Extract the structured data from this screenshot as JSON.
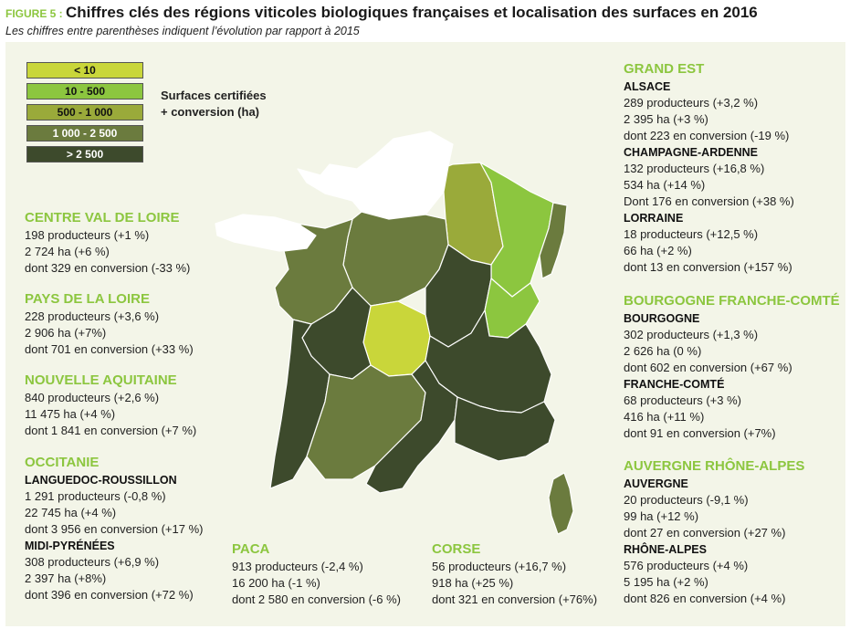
{
  "header": {
    "figure_label": "FIGURE 5 : ",
    "title": "Chiffres clés des régions viticoles biologiques françaises et localisation des surfaces en 2016",
    "subtitle": "Les chiffres entre parenthèses indiquent l’évolution par rapport à 2015"
  },
  "legend": {
    "title_line1": "Surfaces certifiées",
    "title_line2": "+ conversion (ha)",
    "items": [
      {
        "label": "< 10",
        "color": "#c9d63a",
        "text_color": "#111111"
      },
      {
        "label": "10 - 500",
        "color": "#8cc63f",
        "text_color": "#111111"
      },
      {
        "label": "500 - 1 000",
        "color": "#9aaa3a",
        "text_color": "#111111"
      },
      {
        "label": "1 000 - 2 500",
        "color": "#6b7b3e",
        "text_color": "#ffffff"
      },
      {
        "label": "> 2 500",
        "color": "#3d4a2c",
        "text_color": "#ffffff"
      }
    ]
  },
  "regions": {
    "centre": {
      "name": "CENTRE VAL DE LOIRE",
      "lines": [
        "198 producteurs (+1 %)",
        "2 724 ha (+6 %)",
        "dont 329 en conversion (-33 %)"
      ]
    },
    "pays_loire": {
      "name": "PAYS DE LA LOIRE",
      "lines": [
        "228 producteurs (+3,6 %)",
        "2 906 ha (+7%)",
        "dont 701 en conversion (+33 %)"
      ]
    },
    "nouvelle_aquitaine": {
      "name": "NOUVELLE AQUITAINE",
      "lines": [
        "840 producteurs (+2,6 %)",
        "11 475 ha (+4 %)",
        "dont 1 841 en conversion (+7 %)"
      ]
    },
    "occitanie": {
      "name": "OCCITANIE",
      "sub1": "LANGUEDOC-ROUSSILLON",
      "sub1_lines": [
        "1 291 producteurs (-0,8 %)",
        "22 745 ha (+4 %)",
        "dont 3 956 en conversion (+17 %)"
      ],
      "sub2": "MIDI-PYRÉNÉES",
      "sub2_lines": [
        "308 producteurs (+6,9 %)",
        "2 397 ha (+8%)",
        "dont 396 en conversion (+72 %)"
      ]
    },
    "paca": {
      "name": "PACA",
      "lines": [
        "913 producteurs (-2,4 %)",
        "16 200 ha (-1 %)",
        "dont 2 580 en conversion (-6 %)"
      ]
    },
    "corse": {
      "name": "CORSE",
      "lines": [
        "56 producteurs (+16,7 %)",
        "918 ha (+25 %)",
        "dont 321 en conversion (+76%)"
      ]
    },
    "grand_est": {
      "name": "GRAND EST",
      "sub1": "ALSACE",
      "sub1_lines": [
        "289 producteurs (+3,2 %)",
        "2 395 ha (+3 %)",
        "dont 223 en conversion (-19 %)"
      ],
      "sub2": "CHAMPAGNE-ARDENNE",
      "sub2_lines": [
        "132 producteurs (+16,8 %)",
        "534 ha (+14 %)",
        "Dont 176 en conversion (+38 %)"
      ],
      "sub3": "LORRAINE",
      "sub3_lines": [
        "18 producteurs (+12,5 %)",
        "66 ha (+2 %)",
        "dont 13 en conversion (+157 %)"
      ]
    },
    "bourgogne_fc": {
      "name": "BOURGOGNE FRANCHE-COMTÉ",
      "sub1": "BOURGOGNE",
      "sub1_lines": [
        "302 producteurs (+1,3 %)",
        "2 626 ha (0 %)",
        "dont 602 en conversion (+67 %)"
      ],
      "sub2": "FRANCHE-COMTÉ",
      "sub2_lines": [
        "68 producteurs (+3 %)",
        "416 ha (+11 %)",
        "dont 91 en conversion (+7%)"
      ]
    },
    "aura": {
      "name": "AUVERGNE RHÔNE-ALPES",
      "sub1": "AUVERGNE",
      "sub1_lines": [
        "20 producteurs (-9,1 %)",
        "99 ha (+12 %)",
        "dont 27 en conversion (+27 %)"
      ],
      "sub2": "RHÔNE-ALPES",
      "sub2_lines": [
        "576 producteurs (+4 %)",
        "5 195 ha (+2 %)",
        "dont 826 en conversion (+4 %)"
      ]
    }
  },
  "map_colors": {
    "none": "#ffffff",
    "lt10": "#c9d63a",
    "r10_500": "#8cc63f",
    "r500_1000": "#9aaa3a",
    "r1000_2500": "#6b7b3e",
    "gt2500": "#3d4a2c"
  }
}
